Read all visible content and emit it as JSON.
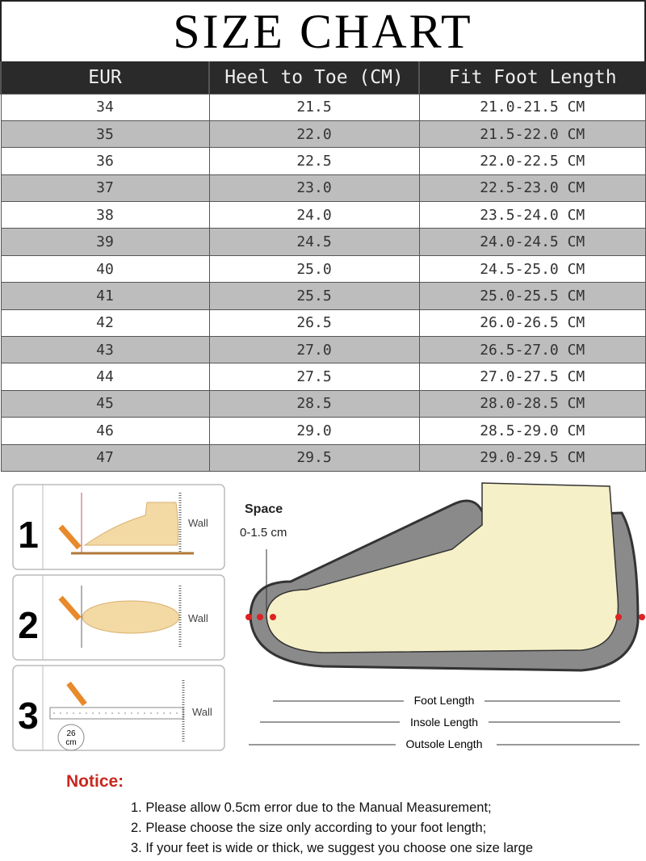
{
  "title": "SIZE CHART",
  "table": {
    "headers": [
      "EUR",
      "Heel to Toe (CM)",
      "Fit Foot Length"
    ],
    "rows": [
      [
        "34",
        "21.5",
        "21.0-21.5 CM"
      ],
      [
        "35",
        "22.0",
        "21.5-22.0 CM"
      ],
      [
        "36",
        "22.5",
        "22.0-22.5 CM"
      ],
      [
        "37",
        "23.0",
        "22.5-23.0 CM"
      ],
      [
        "38",
        "24.0",
        "23.5-24.0 CM"
      ],
      [
        "39",
        "24.5",
        "24.0-24.5 CM"
      ],
      [
        "40",
        "25.0",
        "24.5-25.0 CM"
      ],
      [
        "41",
        "25.5",
        "25.0-25.5 CM"
      ],
      [
        "42",
        "26.5",
        "26.0-26.5 CM"
      ],
      [
        "43",
        "27.0",
        "26.5-27.0 CM"
      ],
      [
        "44",
        "27.5",
        "27.0-27.5 CM"
      ],
      [
        "45",
        "28.5",
        "28.0-28.5 CM"
      ],
      [
        "46",
        "29.0",
        "28.5-29.0 CM"
      ],
      [
        "47",
        "29.5",
        "29.0-29.5 CM"
      ]
    ]
  },
  "steps": [
    {
      "number": "1",
      "wall": "Wall"
    },
    {
      "number": "2",
      "wall": "Wall"
    },
    {
      "number": "3",
      "wall": "Wall",
      "ruler_value": "26",
      "ruler_unit": "cm"
    }
  ],
  "diagram": {
    "space_label": "Space",
    "space_value": "0-1.5 cm",
    "foot_length": "Foot Length",
    "insole_length": "Insole Length",
    "outsole_length": "Outsole Length"
  },
  "notice": {
    "title": "Notice:",
    "items": [
      "1. Please allow 0.5cm error due to the Manual Measurement;",
      "2. Please choose the size only according to your foot length;",
      "3. If your feet is wide or thick, we suggest you choose one size large"
    ]
  },
  "colors": {
    "header_bg": "#2a2a2a",
    "row_alt": "#bdbdbd",
    "notice": "#c8281e",
    "foot": "#f3d9a4",
    "pencil": "#e8892a"
  }
}
